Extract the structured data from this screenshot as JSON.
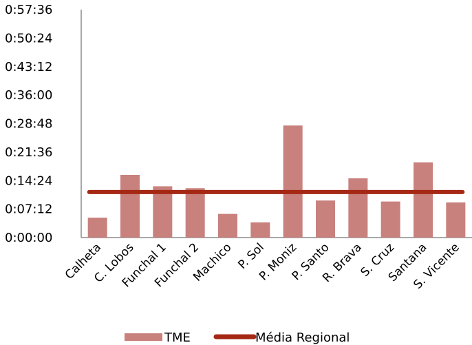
{
  "chart_data": {
    "type": "bar",
    "title": "",
    "xlabel": "",
    "ylabel": "",
    "categories": [
      "Calheta",
      "C. Lobos",
      "Funchal 1",
      "Funchal 2",
      "Machico",
      "P. Sol",
      "P. Moniz",
      "P. Santo",
      "R. Brava",
      "S. Cruz",
      "Santana",
      "S. Vicente"
    ],
    "y_ticks": [
      "0:00:00",
      "0:07:12",
      "0:14:24",
      "0:21:36",
      "0:28:48",
      "0:36:00",
      "0:43:12",
      "0:50:24",
      "0:57:36"
    ],
    "ylim": [
      "0:00:00",
      "0:57:36"
    ],
    "series": [
      {
        "name": "TME",
        "kind": "bar",
        "color": "#c8817d",
        "values": [
          "0:05:02",
          "0:15:50",
          "0:12:58",
          "0:12:29",
          "0:05:59",
          "0:03:50",
          "0:28:19",
          "0:09:22",
          "0:14:59",
          "0:09:07",
          "0:19:01",
          "0:08:53"
        ]
      },
      {
        "name": "Média Regional",
        "kind": "line",
        "color": "#a52815",
        "value": "0:11:31"
      }
    ],
    "legend": "bottom",
    "grid": false
  }
}
